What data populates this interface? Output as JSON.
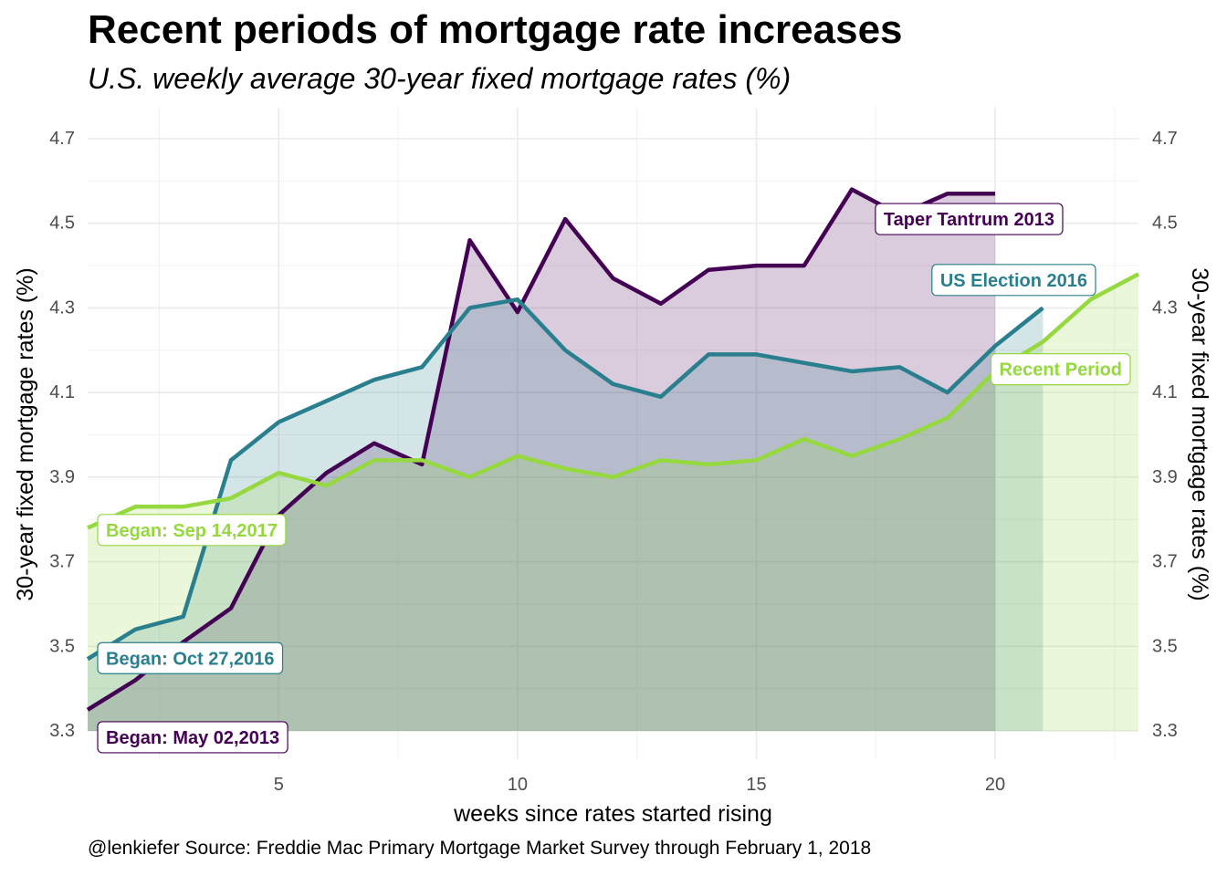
{
  "title": "Recent periods of mortgage rate increases",
  "subtitle": "U.S. weekly average 30-year fixed mortgage rates (%)",
  "caption": "@lenkiefer Source: Freddie Mac Primary Mortgage Market Survey through February 1, 2018",
  "colors": {
    "taper": "#440154",
    "election": "#2a7f8e",
    "recent": "#95d840"
  },
  "chart_data": {
    "type": "area",
    "xlabel": "weeks since rates started rising",
    "ylabel": "30-year fixed mortgage rates (%)",
    "ylabel_right": "30-year fixed mortgage rates (%)",
    "xlim": [
      1,
      23
    ],
    "ylim": [
      3.3,
      4.75
    ],
    "x_ticks": [
      5,
      10,
      15,
      20
    ],
    "y_ticks": [
      3.3,
      3.5,
      3.7,
      3.9,
      4.1,
      4.3,
      4.5,
      4.7
    ],
    "y_tick_labels": [
      "3.3",
      "3.5",
      "3.7",
      "3.9",
      "4.1",
      "4.3",
      "4.5",
      "4.7"
    ],
    "grid": true,
    "series": [
      {
        "name": "Taper Tantrum 2013",
        "color_key": "taper",
        "start_label": "Began: May 02,2013",
        "x": [
          1,
          2,
          3,
          4,
          5,
          6,
          7,
          8,
          9,
          10,
          11,
          12,
          13,
          14,
          15,
          16,
          17,
          18,
          19,
          20
        ],
        "values": [
          3.35,
          3.42,
          3.51,
          3.59,
          3.81,
          3.91,
          3.98,
          3.93,
          4.46,
          4.29,
          4.51,
          4.37,
          4.31,
          4.39,
          4.4,
          4.4,
          4.58,
          4.52,
          4.57,
          4.57
        ]
      },
      {
        "name": "US Election 2016",
        "color_key": "election",
        "start_label": "Began: Oct 27,2016",
        "x": [
          1,
          2,
          3,
          4,
          5,
          6,
          7,
          8,
          9,
          10,
          11,
          12,
          13,
          14,
          15,
          16,
          17,
          18,
          19,
          20,
          21
        ],
        "values": [
          3.47,
          3.54,
          3.57,
          3.94,
          4.03,
          4.08,
          4.13,
          4.16,
          4.3,
          4.32,
          4.2,
          4.12,
          4.09,
          4.19,
          4.19,
          4.17,
          4.15,
          4.16,
          4.1,
          4.21,
          4.3
        ]
      },
      {
        "name": "Recent Period",
        "color_key": "recent",
        "start_label": "Began: Sep 14,2017",
        "x": [
          1,
          2,
          3,
          4,
          5,
          6,
          7,
          8,
          9,
          10,
          11,
          12,
          13,
          14,
          15,
          16,
          17,
          18,
          19,
          20,
          21,
          22,
          23
        ],
        "values": [
          3.78,
          3.83,
          3.83,
          3.85,
          3.91,
          3.88,
          3.94,
          3.94,
          3.9,
          3.95,
          3.92,
          3.9,
          3.94,
          3.93,
          3.94,
          3.99,
          3.95,
          3.99,
          4.04,
          4.15,
          4.22,
          4.32,
          4.38
        ]
      }
    ]
  }
}
